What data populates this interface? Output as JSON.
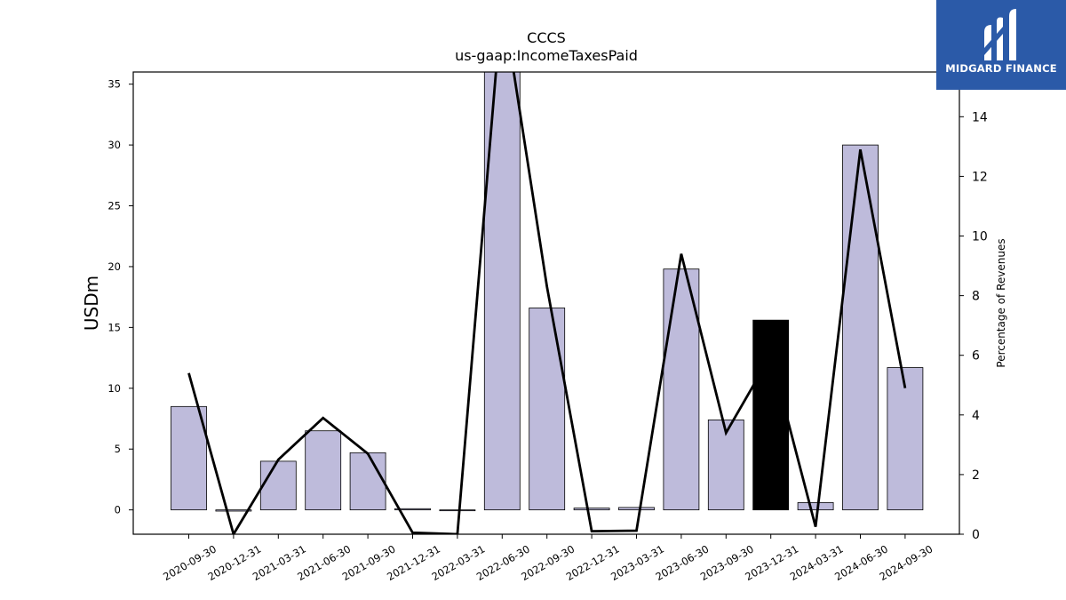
{
  "chart_data": {
    "type": "bar",
    "title": "CCCS",
    "subtitle": "us-gaap:IncomeTaxesPaid",
    "ylabel": "USDm",
    "y2label": "Percentage of Revenues",
    "ylim": [
      -2,
      36
    ],
    "y2lim": [
      0,
      15.5
    ],
    "yticks": [
      0,
      5,
      10,
      15,
      20,
      25,
      30,
      35
    ],
    "y2ticks": [
      0,
      2,
      4,
      6,
      8,
      10,
      12,
      14
    ],
    "categories": [
      "2020-09-30",
      "2020-12-31",
      "2021-03-31",
      "2021-06-30",
      "2021-09-30",
      "2021-12-31",
      "2022-03-31",
      "2022-06-30",
      "2022-09-30",
      "2022-12-31",
      "2023-03-31",
      "2023-06-30",
      "2023-09-30",
      "2023-12-31",
      "2024-03-31",
      "2024-06-30",
      "2024-09-30"
    ],
    "series": [
      {
        "type": "bar",
        "axis": "left",
        "values": [
          8.5,
          -0.1,
          4.0,
          6.5,
          4.7,
          0.1,
          -0.05,
          37.0,
          16.6,
          0.15,
          0.2,
          19.8,
          7.4,
          15.6,
          0.6,
          30.0,
          11.7
        ],
        "highlight_index": 13
      },
      {
        "type": "line",
        "axis": "right",
        "values": [
          5.4,
          0.0,
          2.5,
          3.9,
          2.7,
          0.05,
          0.0,
          18.0,
          8.3,
          0.1,
          0.12,
          9.4,
          3.4,
          6.0,
          0.25,
          12.9,
          4.9
        ]
      }
    ],
    "colors": {
      "bar": "#bebbdb",
      "highlight": "#000000",
      "line": "#000000"
    },
    "grid": false
  },
  "logo": {
    "text": "MIDGARD FINANCE",
    "bg": "#2b5aa8"
  }
}
